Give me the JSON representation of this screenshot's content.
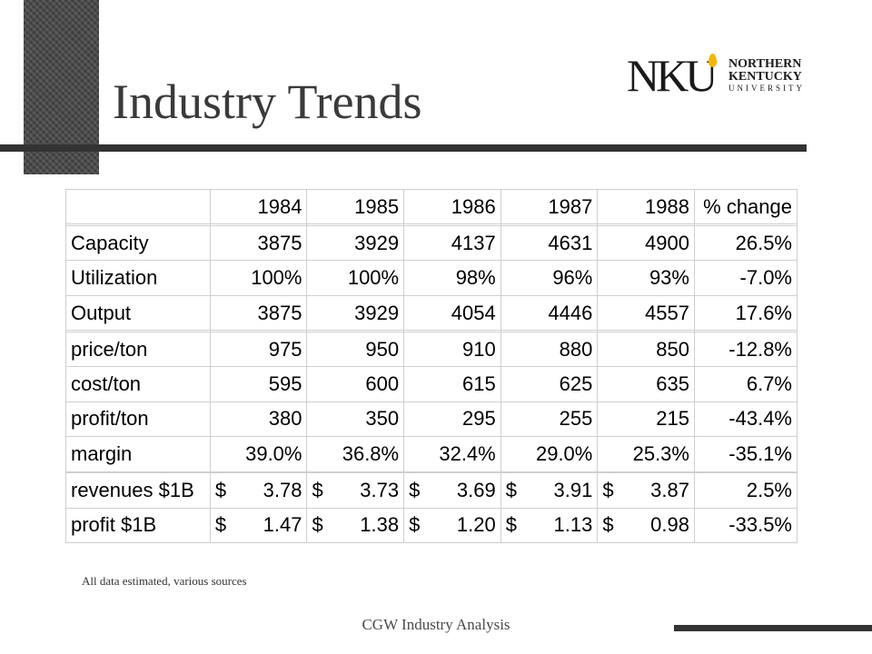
{
  "slide": {
    "title": "Industry Trends",
    "note": "All data estimated, various sources",
    "footer": "CGW Industry Analysis"
  },
  "logo": {
    "mark": "NKU",
    "line1": "NORTHERN",
    "line2": "KENTUCKY",
    "line3": "UNIVERSITY",
    "flame_color": "#f2b705"
  },
  "table": {
    "header": [
      "",
      "1984",
      "1985",
      "1986",
      "1987",
      "1988",
      "% change"
    ],
    "rows": [
      {
        "label": "",
        "values": [
          "",
          "",
          "",
          "",
          ""
        ],
        "change": ""
      },
      {
        "label": "Capacity",
        "values": [
          "3875",
          "3929",
          "4137",
          "4631",
          "4900"
        ],
        "change": "26.5%"
      },
      {
        "label": "Utilization",
        "values": [
          "100%",
          "100%",
          "98%",
          "96%",
          "93%"
        ],
        "change": "-7.0%"
      },
      {
        "label": "Output",
        "values": [
          "3875",
          "3929",
          "4054",
          "4446",
          "4557"
        ],
        "change": "17.6%"
      },
      {
        "label": "",
        "values": [
          "",
          "",
          "",
          "",
          ""
        ],
        "change": ""
      },
      {
        "label": "price/ton",
        "values": [
          "975",
          "950",
          "910",
          "880",
          "850"
        ],
        "change": "-12.8%"
      },
      {
        "label": "cost/ton",
        "values": [
          "595",
          "600",
          "615",
          "625",
          "635"
        ],
        "change": "6.7%"
      },
      {
        "label": "profit/ton",
        "values": [
          "380",
          "350",
          "295",
          "255",
          "215"
        ],
        "change": "-43.4%"
      },
      {
        "label": "margin",
        "values": [
          "39.0%",
          "36.8%",
          "32.4%",
          "29.0%",
          "25.3%"
        ],
        "change": "-35.1%"
      },
      {
        "label": "",
        "values": [
          "",
          "",
          "",
          "",
          ""
        ],
        "change": ""
      },
      {
        "label": "revenues $1B",
        "currency": "$",
        "values": [
          "3.78",
          "3.73",
          "3.69",
          "3.91",
          "3.87"
        ],
        "change": "2.5%"
      },
      {
        "label": "profit $1B",
        "currency": "$",
        "values": [
          "1.47",
          "1.38",
          "1.20",
          "1.13",
          "0.98"
        ],
        "change": "-33.5%"
      }
    ]
  }
}
